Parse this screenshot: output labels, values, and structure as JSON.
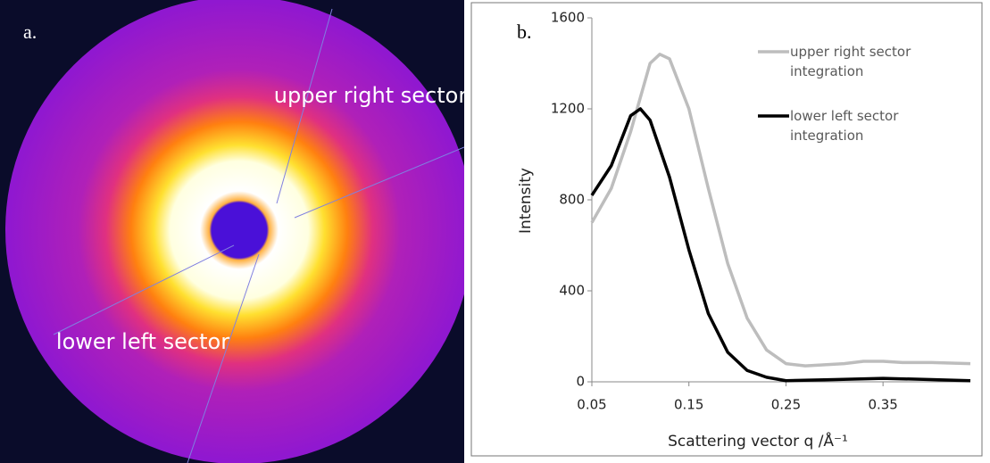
{
  "panel_a": {
    "label": "a.",
    "annotations": [
      "upper right sector",
      "lower left sector"
    ]
  },
  "chart_data": {
    "type": "line",
    "panel_label": "b.",
    "x_label": "Scattering vector q /Å⁻¹",
    "y_label": "Intensity",
    "xlim": [
      0.05,
      0.44
    ],
    "ylim": [
      0,
      1600
    ],
    "xticks": [
      0.05,
      0.15,
      0.25,
      0.35
    ],
    "yticks": [
      0,
      400,
      800,
      1200,
      1600
    ],
    "series": [
      {
        "name": "upper right sector integration",
        "color": "#bdbdbd",
        "x": [
          0.05,
          0.07,
          0.09,
          0.11,
          0.12,
          0.13,
          0.15,
          0.17,
          0.19,
          0.21,
          0.23,
          0.25,
          0.27,
          0.29,
          0.31,
          0.33,
          0.35,
          0.37,
          0.4,
          0.44
        ],
        "values": [
          700,
          850,
          1100,
          1400,
          1440,
          1420,
          1200,
          850,
          520,
          280,
          140,
          80,
          70,
          75,
          80,
          90,
          90,
          85,
          85,
          80
        ]
      },
      {
        "name": "lower left sector integration",
        "color": "#000000",
        "x": [
          0.05,
          0.07,
          0.09,
          0.1,
          0.11,
          0.13,
          0.15,
          0.17,
          0.19,
          0.21,
          0.23,
          0.25,
          0.3,
          0.35,
          0.4,
          0.44
        ],
        "values": [
          820,
          950,
          1170,
          1200,
          1150,
          900,
          580,
          300,
          130,
          50,
          20,
          5,
          10,
          15,
          10,
          5
        ]
      }
    ]
  }
}
